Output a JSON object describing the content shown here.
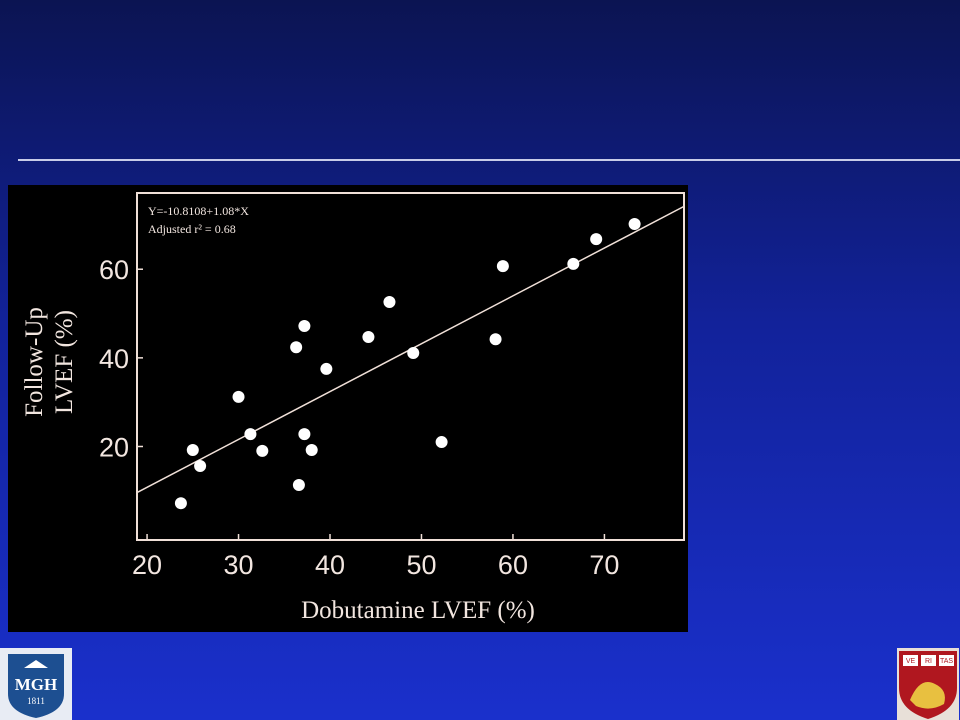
{
  "chart_data": {
    "type": "scatter",
    "annotations": [
      "Y=-10.8108+1.08*X",
      "Adjusted r² = 0.68"
    ],
    "fit_line": {
      "intercept": -10.8108,
      "slope": 1.08
    },
    "x_label": "Dobutamine LVEF (%)",
    "y_label": [
      "Follow-Up",
      "LVEF (%)"
    ],
    "x": [
      23.7,
      25.0,
      25.8,
      30.0,
      31.3,
      32.6,
      36.3,
      36.6,
      37.2,
      37.2,
      38.0,
      39.6,
      44.2,
      46.5,
      49.1,
      52.2,
      58.1,
      58.9,
      66.6,
      69.1,
      73.3
    ],
    "y": [
      7.2,
      19.2,
      15.6,
      31.2,
      22.8,
      19.0,
      42.4,
      11.3,
      47.2,
      22.8,
      19.2,
      37.5,
      44.7,
      52.6,
      41.1,
      21.0,
      44.2,
      60.7,
      61.2,
      66.8,
      70.2
    ],
    "color": "#ffffff",
    "xlim": [
      18.9,
      78.7
    ],
    "ylim": [
      -1.1,
      77.2
    ],
    "xticks": [
      20,
      30,
      40,
      50,
      60,
      70
    ],
    "yticks": [
      20,
      40,
      60
    ]
  },
  "logos": {
    "left": [
      "MGH",
      "1811"
    ],
    "right": [
      "VE",
      "RI",
      "TAS"
    ]
  }
}
